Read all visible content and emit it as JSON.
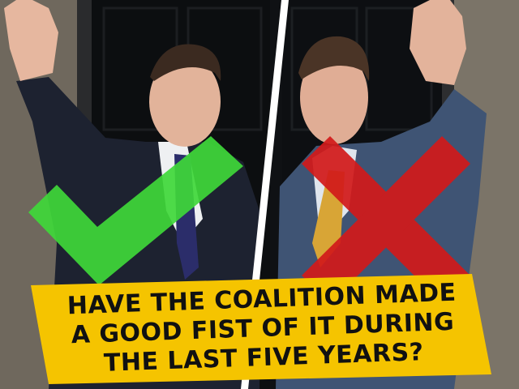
{
  "banner": {
    "lines": [
      "HAVE THE COALITION MADE",
      "A GOOD FIST OF IT DURING",
      "THE LAST FIVE YEARS?"
    ]
  },
  "colors": {
    "banner_yellow": "#f5c400",
    "tick_green": "#3fd83a",
    "cross_red": "#d21a1a",
    "door_black": "#101214",
    "brick": "#7c7468",
    "suit_navy": "#1c2233",
    "divider_white": "#ffffff"
  },
  "icons": {
    "tick": "check-mark-icon",
    "cross": "cross-mark-icon"
  }
}
